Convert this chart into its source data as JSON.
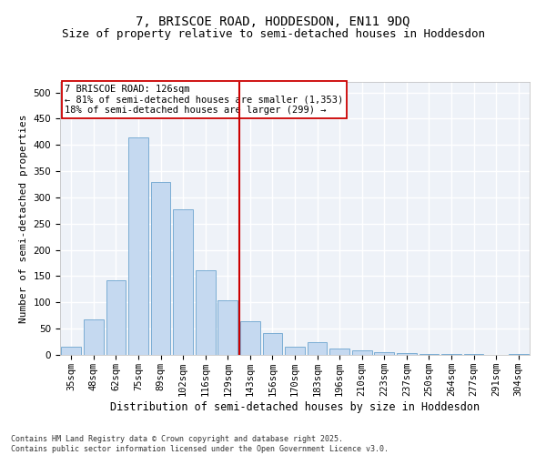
{
  "title1": "7, BRISCOE ROAD, HODDESDON, EN11 9DQ",
  "title2": "Size of property relative to semi-detached houses in Hoddesdon",
  "xlabel": "Distribution of semi-detached houses by size in Hoddesdon",
  "ylabel": "Number of semi-detached properties",
  "bar_labels": [
    "35sqm",
    "48sqm",
    "62sqm",
    "75sqm",
    "89sqm",
    "102sqm",
    "116sqm",
    "129sqm",
    "143sqm",
    "156sqm",
    "170sqm",
    "183sqm",
    "196sqm",
    "210sqm",
    "223sqm",
    "237sqm",
    "250sqm",
    "264sqm",
    "277sqm",
    "291sqm",
    "304sqm"
  ],
  "bar_values": [
    15,
    68,
    142,
    415,
    330,
    278,
    162,
    104,
    65,
    42,
    15,
    25,
    12,
    9,
    5,
    3,
    2,
    1,
    1,
    0,
    1
  ],
  "bar_color": "#c5d9f0",
  "bar_edge_color": "#7badd4",
  "vline_x": 7.5,
  "vline_color": "#cc0000",
  "annotation_title": "7 BRISCOE ROAD: 126sqm",
  "annotation_line1": "← 81% of semi-detached houses are smaller (1,353)",
  "annotation_line2": "18% of semi-detached houses are larger (299) →",
  "annotation_box_color": "#cc0000",
  "ylim": [
    0,
    520
  ],
  "yticks": [
    0,
    50,
    100,
    150,
    200,
    250,
    300,
    350,
    400,
    450,
    500
  ],
  "bg_color": "#eef2f8",
  "footer": "Contains HM Land Registry data © Crown copyright and database right 2025.\nContains public sector information licensed under the Open Government Licence v3.0.",
  "title1_fontsize": 10,
  "title2_fontsize": 9,
  "xlabel_fontsize": 8.5,
  "ylabel_fontsize": 8,
  "tick_fontsize": 7.5,
  "annotation_fontsize": 7.5,
  "footer_fontsize": 6
}
